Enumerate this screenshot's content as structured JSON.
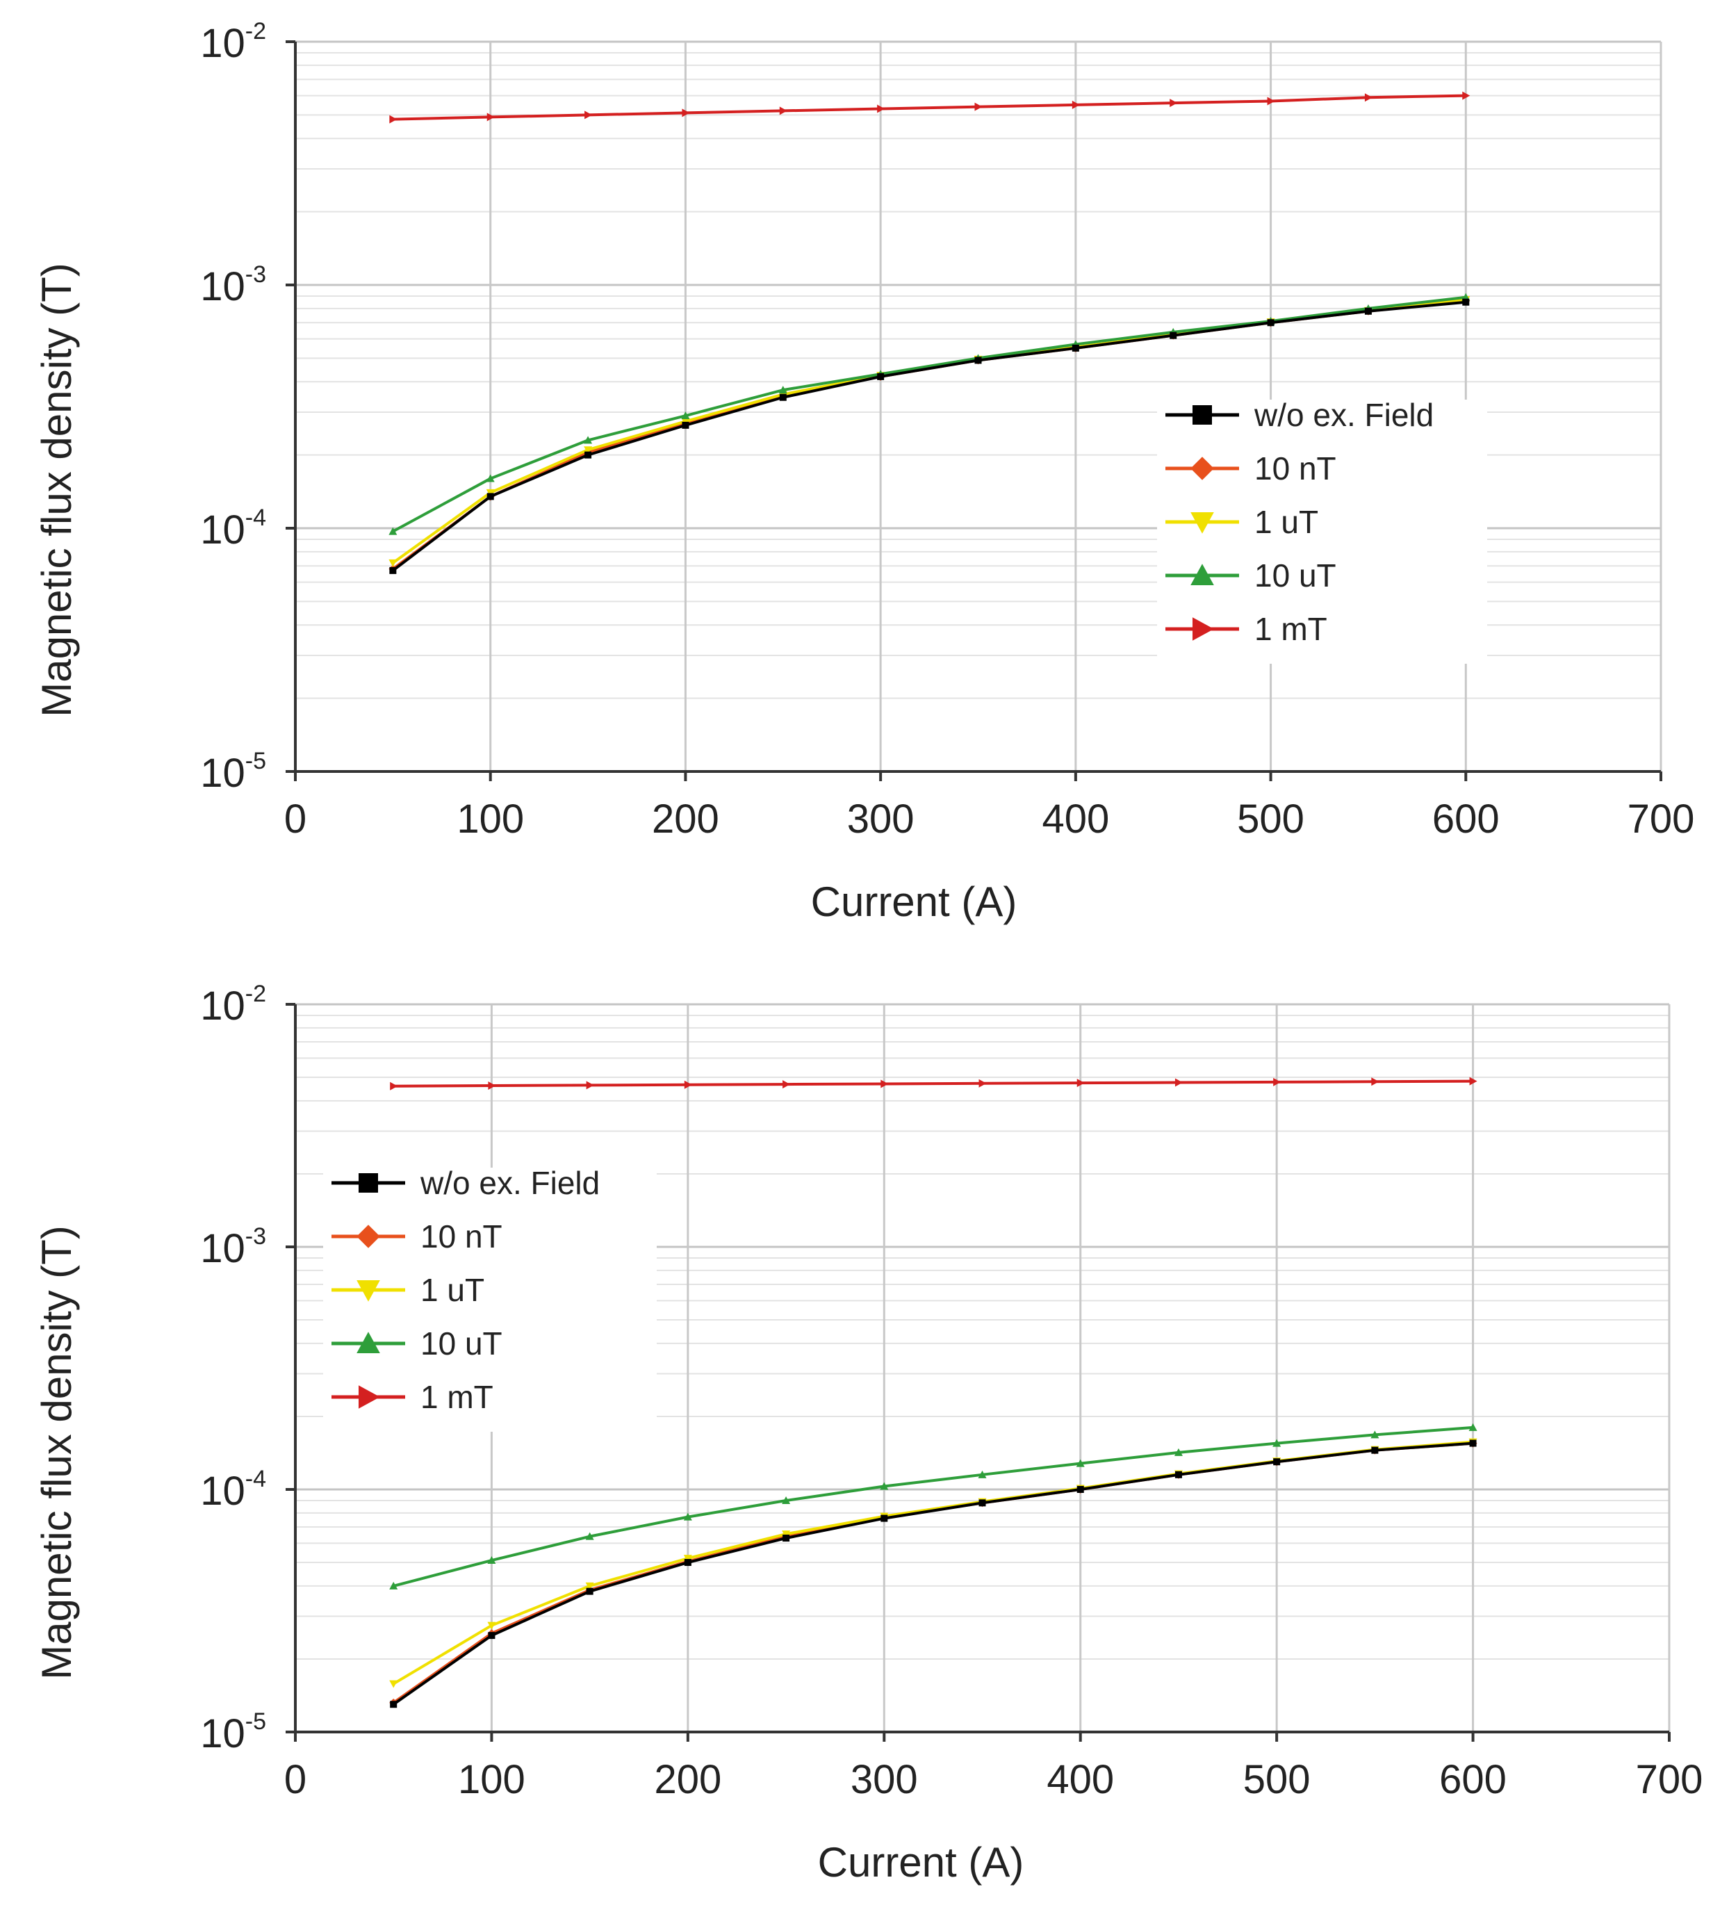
{
  "chart_data": [
    {
      "type": "line",
      "panel": "top",
      "xlabel": "Current (A)",
      "ylabel": "Magnetic flux density (T)",
      "xlim": [
        0,
        700
      ],
      "xticks": [
        0,
        100,
        200,
        300,
        400,
        500,
        600,
        700
      ],
      "yscale": "log",
      "ylim": [
        1e-05,
        0.01
      ],
      "yticks": [
        {
          "value": 1e-05,
          "base": "10",
          "exp": "-5"
        },
        {
          "value": 0.0001,
          "base": "10",
          "exp": "-4"
        },
        {
          "value": 0.001,
          "base": "10",
          "exp": "-3"
        },
        {
          "value": 0.01,
          "base": "10",
          "exp": "-2"
        }
      ],
      "grid": true,
      "legend_position": "center-right",
      "x": [
        50,
        100,
        150,
        200,
        250,
        300,
        350,
        400,
        450,
        500,
        550,
        600
      ],
      "series": [
        {
          "name": "10 nT",
          "color": "#e8501c",
          "marker": "diamond",
          "values": [
            6.8e-05,
            0.000135,
            0.000205,
            0.00027,
            0.00035,
            0.00042,
            0.00049,
            0.00055,
            0.00062,
            0.0007,
            0.00078,
            0.00086
          ]
        },
        {
          "name": "1 uT",
          "color": "#f0e000",
          "marker": "triangle-down",
          "values": [
            7.2e-05,
            0.00014,
            0.00021,
            0.000275,
            0.000355,
            0.000425,
            0.000495,
            0.000555,
            0.000625,
            0.000705,
            0.000785,
            0.00087
          ]
        },
        {
          "name": "10 uT",
          "color": "#2e9e3a",
          "marker": "triangle-up",
          "values": [
            9.7e-05,
            0.00016,
            0.00023,
            0.00029,
            0.00037,
            0.00043,
            0.0005,
            0.00057,
            0.00064,
            0.00071,
            0.0008,
            0.00089
          ]
        },
        {
          "name": "w/o ex. Field",
          "color": "#000000",
          "marker": "square",
          "values": [
            6.7e-05,
            0.000135,
            0.0002,
            0.000265,
            0.000345,
            0.00042,
            0.00049,
            0.00055,
            0.00062,
            0.0007,
            0.00078,
            0.00085
          ]
        },
        {
          "name": "1 mT",
          "color": "#d42020",
          "marker": "triangle-right",
          "values": [
            0.0048,
            0.0049,
            0.005,
            0.0051,
            0.0052,
            0.0053,
            0.0054,
            0.0055,
            0.0056,
            0.0057,
            0.0059,
            0.006
          ]
        }
      ],
      "legend_order": [
        "w/o ex. Field",
        "10 nT",
        "1 uT",
        "10 uT",
        "1 mT"
      ]
    },
    {
      "type": "line",
      "panel": "bottom",
      "xlabel": "Current (A)",
      "ylabel": "Magnetic flux density (T)",
      "xlim": [
        0,
        700
      ],
      "xticks": [
        0,
        100,
        200,
        300,
        400,
        500,
        600,
        700
      ],
      "yscale": "log",
      "ylim": [
        1e-05,
        0.01
      ],
      "yticks": [
        {
          "value": 1e-05,
          "base": "10",
          "exp": "-5"
        },
        {
          "value": 0.0001,
          "base": "10",
          "exp": "-4"
        },
        {
          "value": 0.001,
          "base": "10",
          "exp": "-3"
        },
        {
          "value": 0.01,
          "base": "10",
          "exp": "-2"
        }
      ],
      "grid": true,
      "legend_position": "upper-left",
      "x": [
        50,
        100,
        150,
        200,
        250,
        300,
        350,
        400,
        450,
        500,
        550,
        600
      ],
      "series": [
        {
          "name": "10 nT",
          "color": "#e8501c",
          "marker": "diamond",
          "values": [
            1.32e-05,
            2.55e-05,
            3.85e-05,
            5.05e-05,
            6.4e-05,
            7.65e-05,
            8.8e-05,
            0.0001,
            0.000115,
            0.00013,
            0.000145,
            0.000155
          ]
        },
        {
          "name": "1 uT",
          "color": "#f0e000",
          "marker": "triangle-down",
          "values": [
            1.58e-05,
            2.75e-05,
            4e-05,
            5.2e-05,
            6.55e-05,
            7.75e-05,
            8.9e-05,
            0.000101,
            0.000116,
            0.000131,
            0.000146,
            0.000157
          ]
        },
        {
          "name": "10 uT",
          "color": "#2e9e3a",
          "marker": "triangle-up",
          "values": [
            4e-05,
            5.1e-05,
            6.4e-05,
            7.7e-05,
            9e-05,
            0.000103,
            0.000115,
            0.000128,
            0.000142,
            0.000155,
            0.000168,
            0.00018
          ]
        },
        {
          "name": "w/o ex. Field",
          "color": "#000000",
          "marker": "square",
          "values": [
            1.3e-05,
            2.5e-05,
            3.8e-05,
            5e-05,
            6.3e-05,
            7.6e-05,
            8.8e-05,
            0.0001,
            0.000115,
            0.00013,
            0.000145,
            0.000155
          ]
        },
        {
          "name": "1 mT",
          "color": "#d42020",
          "marker": "triangle-right",
          "values": [
            0.0046,
            0.00462,
            0.00464,
            0.00466,
            0.00468,
            0.0047,
            0.00472,
            0.00474,
            0.00476,
            0.00478,
            0.0048,
            0.00482
          ]
        }
      ],
      "legend_order": [
        "w/o ex. Field",
        "10 nT",
        "1 uT",
        "10 uT",
        "1 mT"
      ]
    }
  ]
}
